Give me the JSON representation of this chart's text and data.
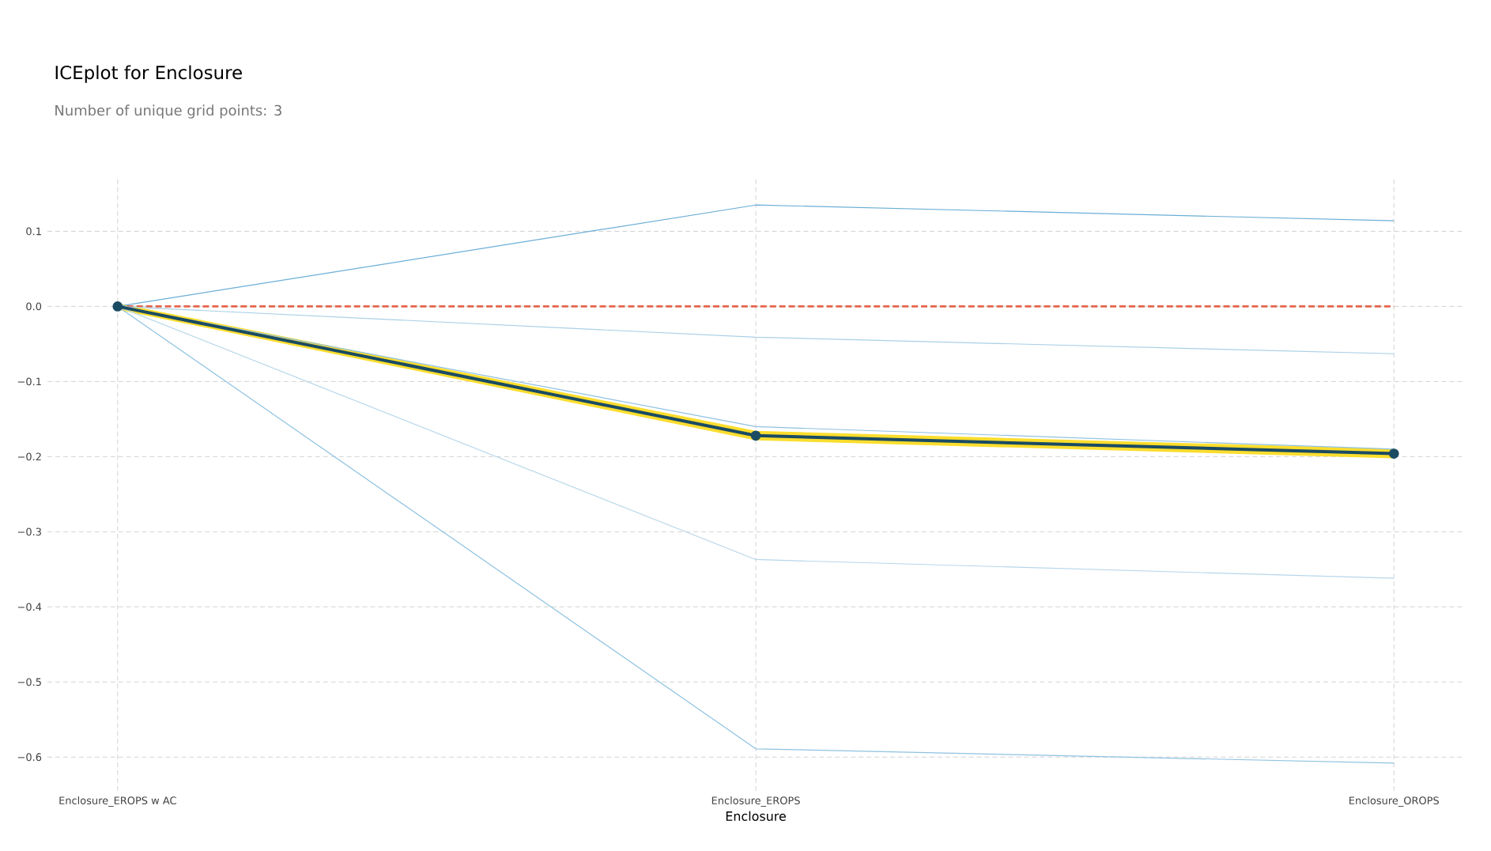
{
  "chart_data": {
    "type": "line",
    "title": "ICEplot for Enclosure",
    "subtitle": "Number of unique grid points: 3",
    "xlabel": "Enclosure",
    "categories": [
      "Enclosure_EROPS w AC",
      "Enclosure_EROPS",
      "Enclosure_OROPS"
    ],
    "series": [
      {
        "color": "#6aaed6",
        "values": [
          0,
          0.135,
          0.114
        ]
      },
      {
        "color": "#a9cfe6",
        "values": [
          0,
          -0.041,
          -0.063
        ]
      },
      {
        "color": "#8fc0e0",
        "values": [
          0,
          -0.16,
          -0.19
        ]
      },
      {
        "color": "#b7d6ea",
        "values": [
          0,
          -0.337,
          -0.362
        ]
      },
      {
        "color": "#8ec2e0",
        "values": [
          0,
          -0.589,
          -0.608
        ]
      },
      {
        "color": "#1a4b63",
        "values": [
          0,
          -0.172,
          -0.196
        ],
        "marker": "circle",
        "lower": [
          -0.003,
          -0.177,
          -0.201
        ],
        "upper": [
          0.003,
          -0.167,
          -0.191
        ]
      }
    ],
    "ylim": [
      -0.645,
      0.17
    ],
    "yticks": [
      {
        "value": 0.1,
        "label": "0.1"
      },
      {
        "value": 0,
        "label": "0.0"
      },
      {
        "value": -0.1,
        "label": "−0.1"
      },
      {
        "value": -0.2,
        "label": "−0.2"
      },
      {
        "value": -0.3,
        "label": "−0.3"
      },
      {
        "value": -0.4,
        "label": "−0.4"
      },
      {
        "value": -0.5,
        "label": "−0.5"
      },
      {
        "value": -0.6,
        "label": "−0.6"
      }
    ],
    "ref_lines": [
      {
        "axis": "y",
        "value": 0,
        "color": "#e5654c",
        "line_style": "dashed"
      }
    ],
    "grid": true,
    "marker": "none",
    "line_style": "solid"
  }
}
